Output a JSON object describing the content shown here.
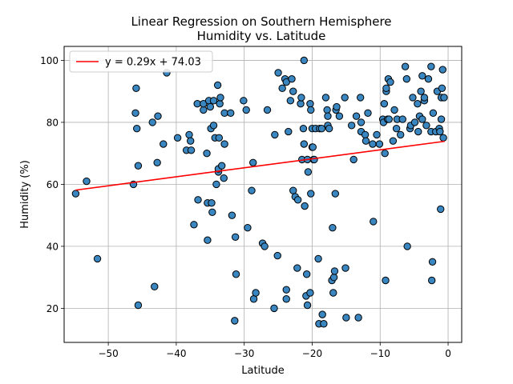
{
  "chart_data": {
    "type": "scatter",
    "title_line1": "Linear Regression on Southern Hemisphere",
    "title_line2": "Humidity vs. Latitude",
    "xlabel": "Latitude",
    "ylabel": "Humidity (%)",
    "xlim": [
      -56.5,
      2.0
    ],
    "ylim": [
      9.0,
      104.5
    ],
    "xticks": [
      -50,
      -40,
      -30,
      -20,
      -10,
      0
    ],
    "yticks": [
      20,
      40,
      60,
      80,
      100
    ],
    "grid": true,
    "legend_position": "upper-left",
    "regression": {
      "label": "y = 0.29x + 74.03",
      "slope": 0.29,
      "intercept": 74.03,
      "x_range": [
        -54.8,
        -0.5
      ]
    },
    "colors": {
      "points": "#3a86c0",
      "point_edge": "#000000",
      "line": "#ff0000",
      "grid": "#b0b0b0"
    },
    "points": [
      [
        -54.8,
        57
      ],
      [
        -53.2,
        61
      ],
      [
        -51.6,
        36
      ],
      [
        -46.3,
        60
      ],
      [
        -46.0,
        83
      ],
      [
        -45.9,
        91
      ],
      [
        -45.8,
        78
      ],
      [
        -45.6,
        66
      ],
      [
        -45.6,
        21
      ],
      [
        -43.5,
        80
      ],
      [
        -43.2,
        27
      ],
      [
        -42.8,
        67
      ],
      [
        -42.7,
        82
      ],
      [
        -41.9,
        73
      ],
      [
        -41.4,
        96
      ],
      [
        -39.8,
        75
      ],
      [
        -38.5,
        71
      ],
      [
        -38.1,
        76
      ],
      [
        -37.9,
        74
      ],
      [
        -37.8,
        71
      ],
      [
        -37.4,
        47
      ],
      [
        -36.9,
        86
      ],
      [
        -36.8,
        55
      ],
      [
        -36.0,
        84
      ],
      [
        -36.0,
        86
      ],
      [
        -35.5,
        70
      ],
      [
        -35.4,
        42
      ],
      [
        -35.4,
        54
      ],
      [
        -35.2,
        87
      ],
      [
        -35.0,
        85
      ],
      [
        -34.9,
        78
      ],
      [
        -34.8,
        54
      ],
      [
        -34.7,
        51
      ],
      [
        -34.5,
        79
      ],
      [
        -34.5,
        87
      ],
      [
        -34.3,
        75
      ],
      [
        -34.1,
        60
      ],
      [
        -33.9,
        92
      ],
      [
        -33.8,
        64
      ],
      [
        -33.8,
        65
      ],
      [
        -33.7,
        75
      ],
      [
        -33.6,
        86
      ],
      [
        -33.5,
        88
      ],
      [
        -33.3,
        66
      ],
      [
        -33.0,
        62
      ],
      [
        -32.9,
        73
      ],
      [
        -32.9,
        83
      ],
      [
        -32.0,
        83
      ],
      [
        -31.8,
        50
      ],
      [
        -31.4,
        16
      ],
      [
        -31.3,
        43
      ],
      [
        -31.2,
        31
      ],
      [
        -30.1,
        87
      ],
      [
        -29.7,
        84
      ],
      [
        -29.5,
        46
      ],
      [
        -28.9,
        58
      ],
      [
        -28.7,
        67
      ],
      [
        -28.6,
        23
      ],
      [
        -28.3,
        25
      ],
      [
        -27.3,
        41
      ],
      [
        -27.0,
        40
      ],
      [
        -26.6,
        84
      ],
      [
        -25.6,
        20
      ],
      [
        -25.5,
        76
      ],
      [
        -25.1,
        37
      ],
      [
        -25.0,
        96
      ],
      [
        -24.4,
        91
      ],
      [
        -24.0,
        94
      ],
      [
        -23.8,
        26
      ],
      [
        -23.8,
        23
      ],
      [
        -23.8,
        93
      ],
      [
        -23.5,
        77
      ],
      [
        -23.2,
        87
      ],
      [
        -23.0,
        94
      ],
      [
        -22.8,
        90
      ],
      [
        -22.8,
        58
      ],
      [
        -22.5,
        56
      ],
      [
        -22.2,
        33
      ],
      [
        -22.1,
        55
      ],
      [
        -21.7,
        86
      ],
      [
        -21.6,
        88
      ],
      [
        -21.5,
        68
      ],
      [
        -21.3,
        78
      ],
      [
        -21.2,
        73
      ],
      [
        -21.2,
        100
      ],
      [
        -21.1,
        53
      ],
      [
        -20.9,
        24
      ],
      [
        -20.8,
        31
      ],
      [
        -20.7,
        21
      ],
      [
        -20.7,
        68
      ],
      [
        -20.6,
        64
      ],
      [
        -20.3,
        86
      ],
      [
        -20.3,
        25
      ],
      [
        -20.2,
        57
      ],
      [
        -20.2,
        84
      ],
      [
        -20.0,
        72
      ],
      [
        -20.0,
        78
      ],
      [
        -19.9,
        72
      ],
      [
        -19.8,
        68
      ],
      [
        -19.7,
        68
      ],
      [
        -19.5,
        78
      ],
      [
        -19.1,
        36
      ],
      [
        -19.0,
        15
      ],
      [
        -18.9,
        78
      ],
      [
        -18.6,
        78
      ],
      [
        -18.5,
        18
      ],
      [
        -18.3,
        15
      ],
      [
        -18.0,
        88
      ],
      [
        -17.8,
        84
      ],
      [
        -17.7,
        79
      ],
      [
        -17.7,
        82
      ],
      [
        -17.5,
        78
      ],
      [
        -17.1,
        29
      ],
      [
        -17.0,
        46
      ],
      [
        -16.9,
        25
      ],
      [
        -16.8,
        30
      ],
      [
        -16.7,
        32
      ],
      [
        -16.6,
        57
      ],
      [
        -16.5,
        84
      ],
      [
        -16.4,
        85
      ],
      [
        -16.0,
        82
      ],
      [
        -15.2,
        88
      ],
      [
        -15.1,
        33
      ],
      [
        -15.0,
        17
      ],
      [
        -14.2,
        79
      ],
      [
        -13.9,
        68
      ],
      [
        -13.5,
        82
      ],
      [
        -13.2,
        17
      ],
      [
        -12.9,
        88
      ],
      [
        -12.8,
        80
      ],
      [
        -12.8,
        77
      ],
      [
        -12.2,
        76
      ],
      [
        -12.1,
        74
      ],
      [
        -11.8,
        83
      ],
      [
        -11.1,
        73
      ],
      [
        -11.0,
        48
      ],
      [
        -10.5,
        76
      ],
      [
        -10.1,
        73
      ],
      [
        -9.6,
        81
      ],
      [
        -9.5,
        80
      ],
      [
        -9.4,
        86
      ],
      [
        -9.3,
        70
      ],
      [
        -9.2,
        29
      ],
      [
        -9.1,
        90
      ],
      [
        -9.1,
        91
      ],
      [
        -8.9,
        81
      ],
      [
        -8.8,
        94
      ],
      [
        -8.7,
        81
      ],
      [
        -8.5,
        93
      ],
      [
        -8.1,
        74
      ],
      [
        -7.9,
        84
      ],
      [
        -7.6,
        78
      ],
      [
        -7.5,
        81
      ],
      [
        -7.0,
        76
      ],
      [
        -6.7,
        81
      ],
      [
        -6.3,
        98
      ],
      [
        -6.1,
        94
      ],
      [
        -6.0,
        40
      ],
      [
        -5.6,
        78
      ],
      [
        -5.5,
        79
      ],
      [
        -5.2,
        88
      ],
      [
        -4.9,
        80
      ],
      [
        -4.5,
        86
      ],
      [
        -4.4,
        77
      ],
      [
        -4.2,
        82
      ],
      [
        -4.0,
        90
      ],
      [
        -3.8,
        95
      ],
      [
        -3.8,
        81
      ],
      [
        -3.5,
        87
      ],
      [
        -3.5,
        88
      ],
      [
        -3.2,
        79
      ],
      [
        -2.9,
        94
      ],
      [
        -2.5,
        98
      ],
      [
        -2.5,
        77
      ],
      [
        -2.4,
        29
      ],
      [
        -2.3,
        35
      ],
      [
        -2.2,
        83
      ],
      [
        -1.8,
        77
      ],
      [
        -1.6,
        90
      ],
      [
        -1.3,
        78
      ],
      [
        -1.2,
        77
      ],
      [
        -1.1,
        52
      ],
      [
        -1.0,
        81
      ],
      [
        -1.0,
        88
      ],
      [
        -0.9,
        91
      ],
      [
        -0.8,
        97
      ],
      [
        -0.7,
        75
      ],
      [
        -0.6,
        88
      ]
    ]
  }
}
